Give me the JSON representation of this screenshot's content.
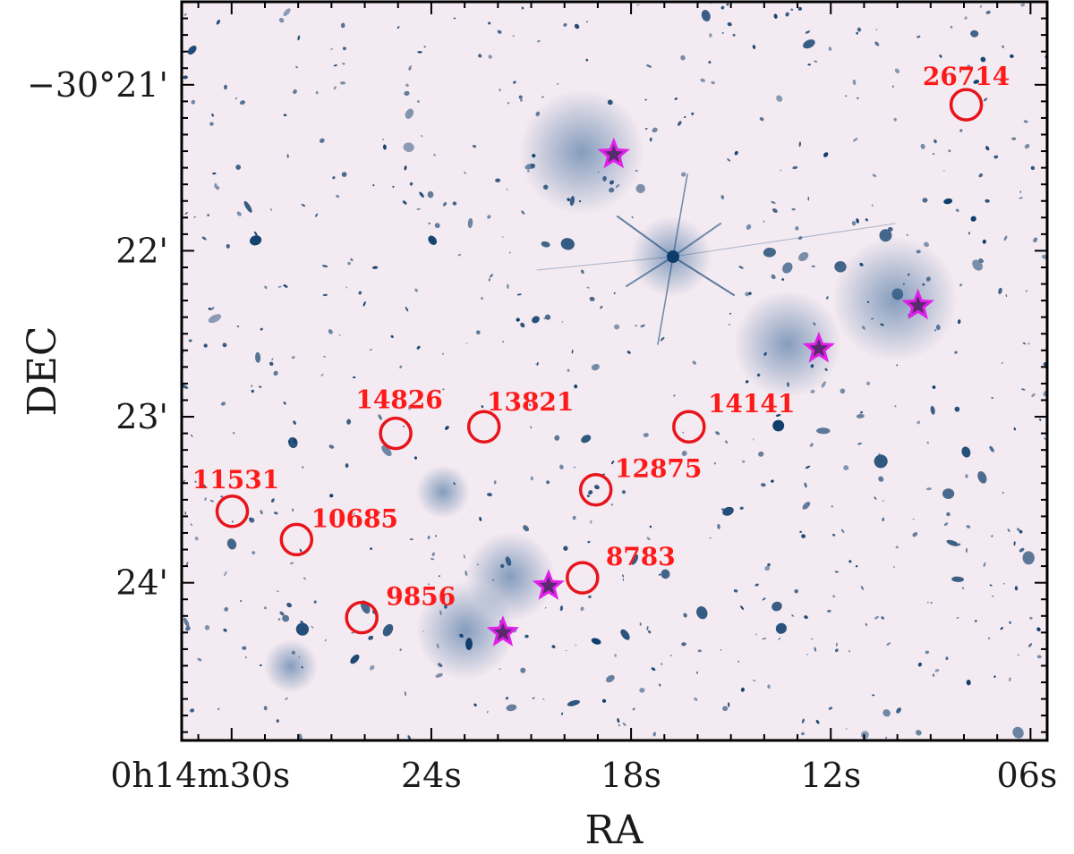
{
  "chart_data": {
    "type": "scatter",
    "title": "",
    "xlabel": "RA",
    "ylabel": "DEC",
    "background": "astronomical image (galaxy cluster field)",
    "image_colormap": {
      "background": "#f4eaf1",
      "objects": "#0d3d6b"
    },
    "x_ticks": [
      {
        "label": "0h14m30s",
        "ra_s": 30
      },
      {
        "label": "24s",
        "ra_s": 24
      },
      {
        "label": "18s",
        "ra_s": 18
      },
      {
        "label": "12s",
        "ra_s": 12
      },
      {
        "label": "06s",
        "ra_s": 6
      }
    ],
    "y_ticks": [
      {
        "label": "−30°21'",
        "dec_arcmin": 21
      },
      {
        "label": "22'",
        "dec_arcmin": 22
      },
      {
        "label": "23'",
        "dec_arcmin": 23
      },
      {
        "label": "24'",
        "dec_arcmin": 24
      }
    ],
    "xlim_ra_s": [
      31.5,
      5.5
    ],
    "ylim_dec_arcmin": [
      20.5,
      24.95
    ],
    "series": [
      {
        "marker": "circle",
        "color": "#e8141b",
        "points": [
          {
            "id": "26714",
            "ra_s": 7.93,
            "dec_arcmin": 21.12
          },
          {
            "id": "14826",
            "ra_s": 25.07,
            "dec_arcmin": 23.1
          },
          {
            "id": "13821",
            "ra_s": 22.42,
            "dec_arcmin": 23.06
          },
          {
            "id": "14141",
            "ra_s": 16.26,
            "dec_arcmin": 23.06
          },
          {
            "id": "12875",
            "ra_s": 19.06,
            "dec_arcmin": 23.44
          },
          {
            "id": "11531",
            "ra_s": 29.98,
            "dec_arcmin": 23.57
          },
          {
            "id": "10685",
            "ra_s": 28.05,
            "dec_arcmin": 23.74
          },
          {
            "id": "8783",
            "ra_s": 19.46,
            "dec_arcmin": 23.97
          },
          {
            "id": "9856",
            "ra_s": 26.09,
            "dec_arcmin": 24.21
          }
        ]
      },
      {
        "marker": "star",
        "color": "#e020e8",
        "points": [
          {
            "ra_s": 18.52,
            "dec_arcmin": 21.42
          },
          {
            "ra_s": 9.38,
            "dec_arcmin": 22.33
          },
          {
            "ra_s": 12.36,
            "dec_arcmin": 22.59
          },
          {
            "ra_s": 20.48,
            "dec_arcmin": 24.02
          },
          {
            "ra_s": 21.85,
            "dec_arcmin": 24.3
          }
        ]
      }
    ],
    "grid": false,
    "legend": "none"
  }
}
